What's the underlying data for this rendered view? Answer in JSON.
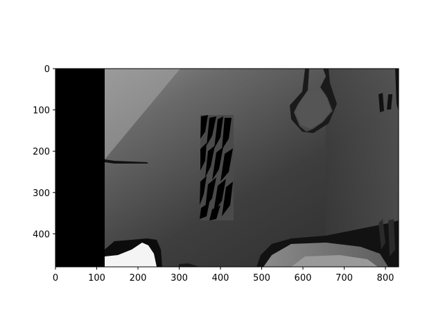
{
  "chart_data": {
    "type": "heatmap",
    "colormap": "gray",
    "image_size": [
      832,
      480
    ],
    "xlim": [
      0,
      832
    ],
    "ylim": [
      480,
      0
    ],
    "x_ticks": [
      0,
      100,
      200,
      300,
      400,
      500,
      600,
      700,
      800
    ],
    "y_ticks": [
      0,
      100,
      200,
      300,
      400
    ],
    "x_tick_labels": [
      "0",
      "100",
      "200",
      "300",
      "400",
      "500",
      "600",
      "700",
      "800"
    ],
    "y_tick_labels": [
      "0",
      "100",
      "200",
      "300",
      "400"
    ],
    "title": "",
    "xlabel": "",
    "ylabel": ""
  }
}
